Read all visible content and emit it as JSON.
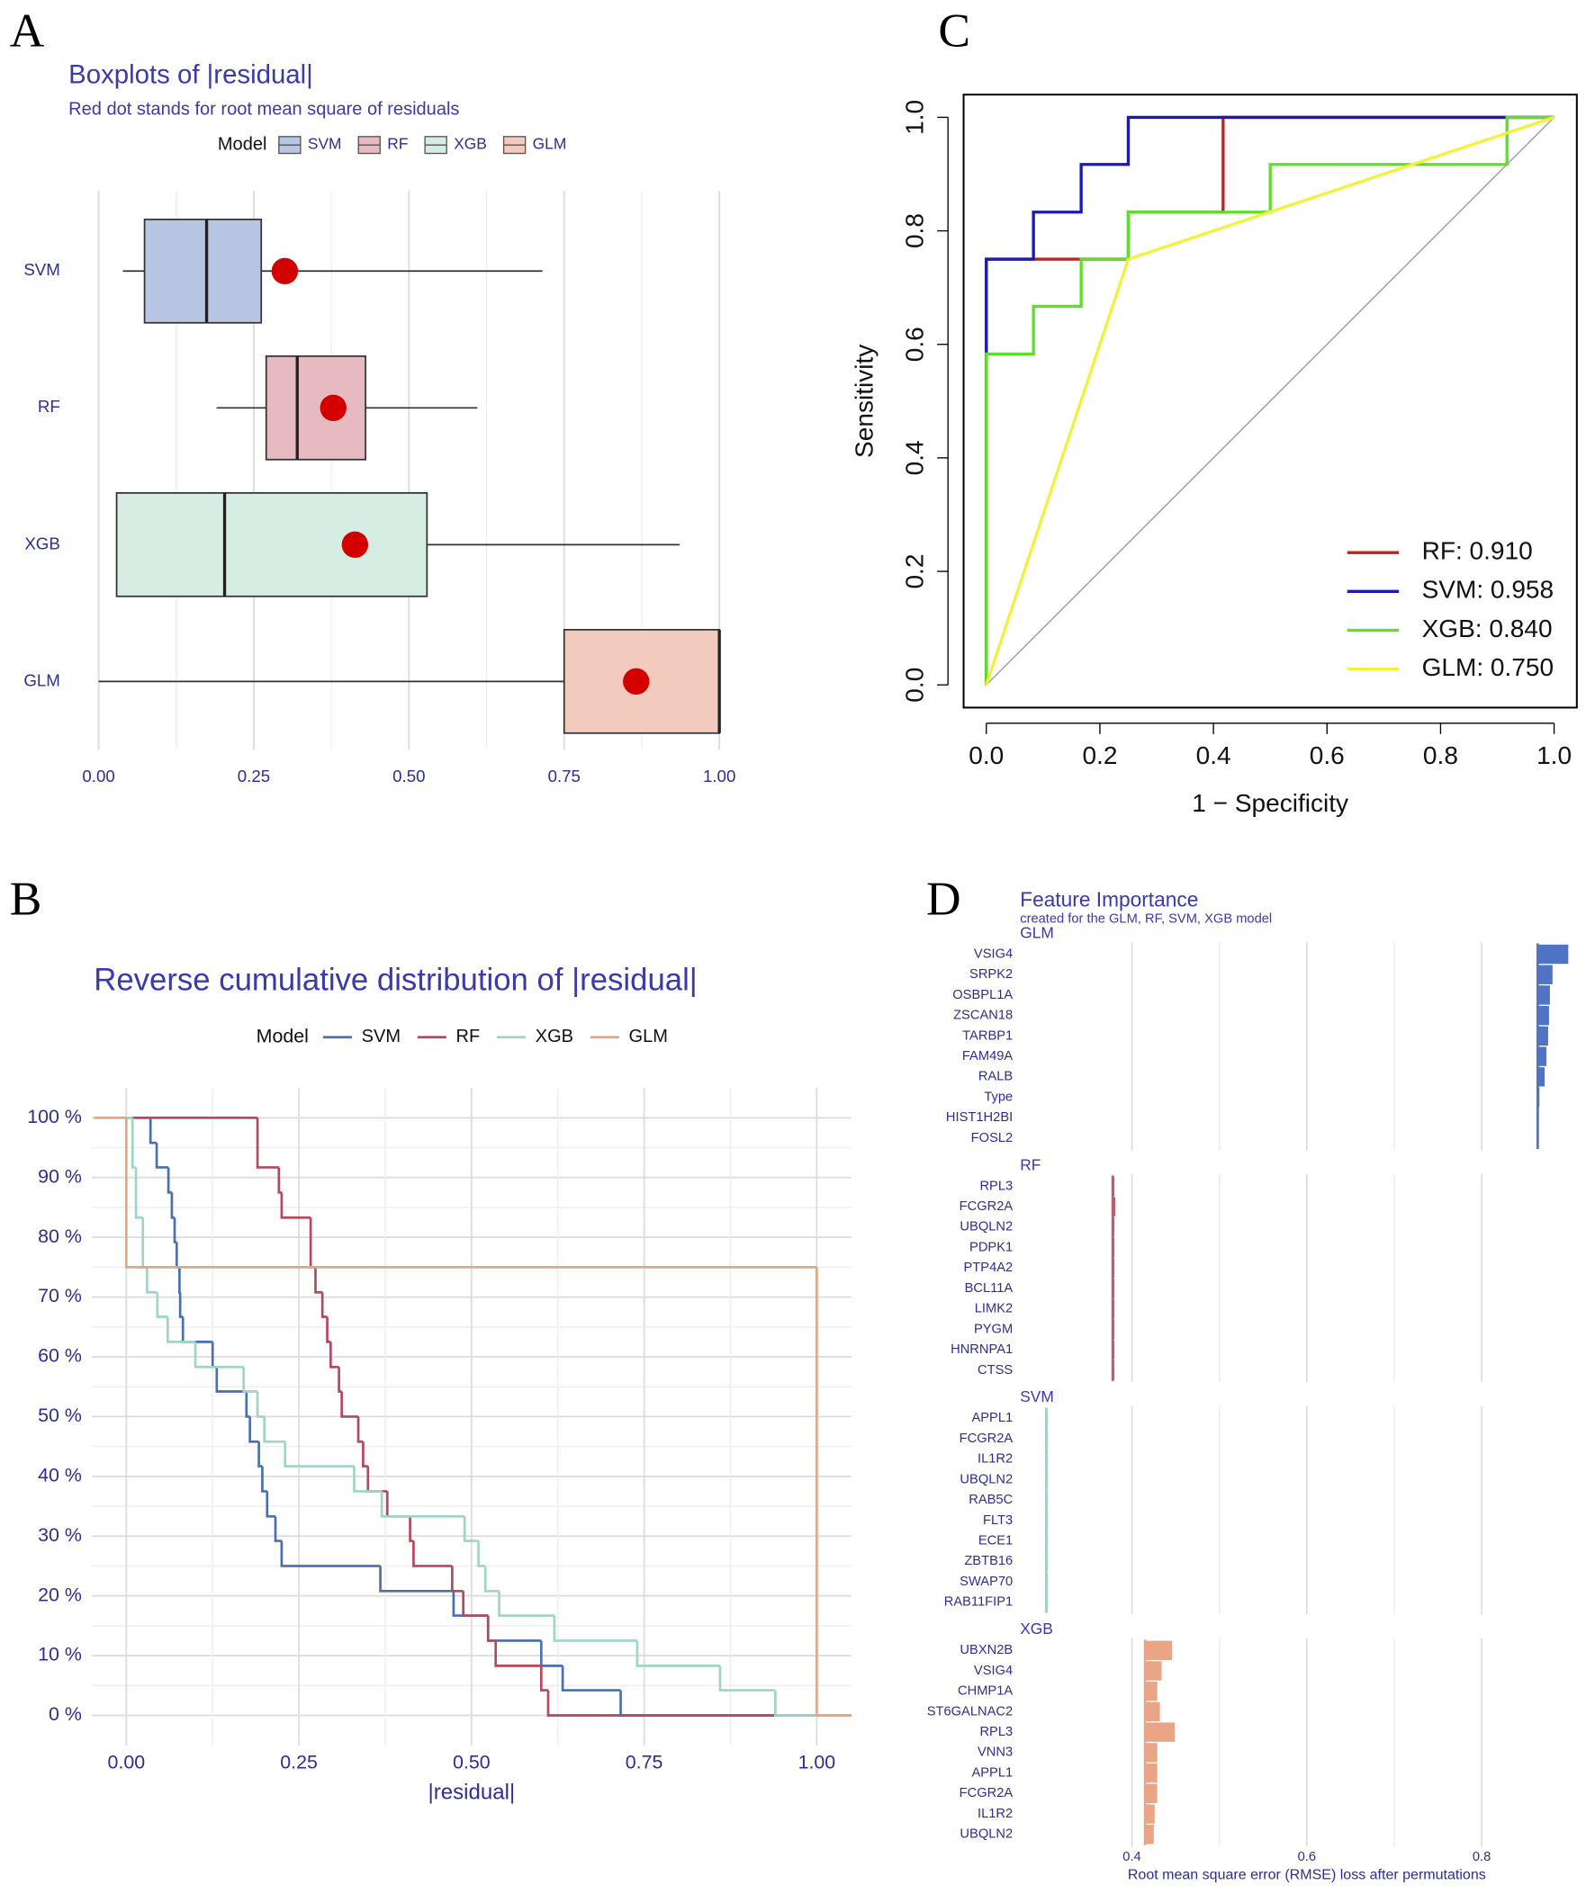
{
  "chart_data": [
    {
      "panel_label": "A",
      "type": "boxplot",
      "title": "Boxplots of |residual|",
      "subtitle": "Red dot stands for root mean square of residuals",
      "legend_title": "Model",
      "dot_color": "#d40000",
      "boxes": [
        {
          "name": "SVM",
          "color": "#b7c5e3",
          "min": 0.039,
          "q1": 0.074,
          "median": 0.174,
          "q3": 0.262,
          "max": 0.715,
          "rmse": 0.3
        },
        {
          "name": "RF",
          "color": "#e7b9c1",
          "min": 0.19,
          "q1": 0.27,
          "median": 0.32,
          "q3": 0.43,
          "max": 0.61,
          "rmse": 0.378
        },
        {
          "name": "XGB",
          "color": "#d6ede3",
          "min": 0.029,
          "q1": 0.029,
          "median": 0.203,
          "q3": 0.529,
          "max": 0.936,
          "rmse": 0.413
        },
        {
          "name": "GLM",
          "color": "#f2cbbe",
          "min": 0,
          "q1": 0.75,
          "median": 1,
          "q3": 1,
          "max": 1,
          "rmse": 0.866
        }
      ],
      "xlim": [
        -0.03,
        1.03
      ],
      "xticks": [
        {
          "value": 0,
          "label": "0.00"
        },
        {
          "value": 0.25,
          "label": "0.25"
        },
        {
          "value": 0.5,
          "label": "0.50"
        },
        {
          "value": 0.75,
          "label": "0.75"
        },
        {
          "value": 1,
          "label": "1.00"
        }
      ],
      "grid": true
    },
    {
      "panel_label": "B",
      "type": "step",
      "title": "Reverse cumulative distribution of |residual|",
      "legend_title": "Model",
      "x_label": "|residual|",
      "series": [
        {
          "name": "SVM",
          "color": "#4a6fb0",
          "x": [
            0,
            0.035,
            0.044,
            0.061,
            0.066,
            0.07,
            0.073,
            0.077,
            0.078,
            0.082,
            0.125,
            0.131,
            0.174,
            0.179,
            0.192,
            0.197,
            0.204,
            0.216,
            0.225,
            0.368,
            0.474,
            0.524,
            0.601,
            0.632,
            0.716
          ],
          "values": [
            100,
            95.8,
            91.7,
            87.5,
            83.3,
            79.2,
            75,
            70.8,
            66.7,
            62.5,
            58.3,
            54.2,
            50,
            45.8,
            41.7,
            37.5,
            33.3,
            29.2,
            25,
            20.8,
            16.7,
            12.5,
            8.3,
            4.2,
            0
          ]
        },
        {
          "name": "RF",
          "color": "#b5485d",
          "x": [
            0,
            0.19,
            0.221,
            0.225,
            0.267,
            0.274,
            0.284,
            0.291,
            0.296,
            0.308,
            0.312,
            0.336,
            0.343,
            0.35,
            0.378,
            0.411,
            0.416,
            0.472,
            0.488,
            0.524,
            0.535,
            0.601,
            0.611
          ],
          "values": [
            100,
            91.7,
            87.5,
            83.3,
            75,
            70.8,
            66.7,
            62.5,
            58.3,
            54.2,
            50,
            45.8,
            41.7,
            37.5,
            33.3,
            29.2,
            25,
            20.8,
            16.7,
            12.5,
            8.3,
            4.2,
            0
          ]
        },
        {
          "name": "XGB",
          "color": "#9fd5c1",
          "x": [
            0,
            0.009,
            0.014,
            0.024,
            0.03,
            0.045,
            0.06,
            0.1,
            0.17,
            0.19,
            0.2,
            0.23,
            0.33,
            0.37,
            0.49,
            0.51,
            0.52,
            0.54,
            0.62,
            0.74,
            0.86,
            0.94
          ],
          "values": [
            100,
            91.7,
            83.3,
            75,
            70.8,
            66.7,
            62.5,
            58.3,
            54.2,
            50,
            45.8,
            41.7,
            37.5,
            33.3,
            29.2,
            25,
            20.8,
            16.7,
            12.5,
            8.3,
            4.2,
            0
          ]
        },
        {
          "name": "GLM",
          "color": "#e2a77f",
          "x": [
            -0.047,
            0,
            1
          ],
          "values": [
            100,
            75,
            0
          ]
        }
      ],
      "xlim": [
        -0.05,
        1.05
      ],
      "xticks": [
        {
          "value": 0,
          "label": "0.00"
        },
        {
          "value": 0.25,
          "label": "0.25"
        },
        {
          "value": 0.5,
          "label": "0.50"
        },
        {
          "value": 0.75,
          "label": "0.75"
        },
        {
          "value": 1,
          "label": "1.00"
        }
      ],
      "ylim": [
        -5,
        105
      ],
      "yticks": [
        {
          "value": 0,
          "label": "0 %"
        },
        {
          "value": 10,
          "label": "10 %"
        },
        {
          "value": 20,
          "label": "20 %"
        },
        {
          "value": 30,
          "label": "30 %"
        },
        {
          "value": 40,
          "label": "40 %"
        },
        {
          "value": 50,
          "label": "50 %"
        },
        {
          "value": 60,
          "label": "60 %"
        },
        {
          "value": 70,
          "label": "70 %"
        },
        {
          "value": 80,
          "label": "80 %"
        },
        {
          "value": 90,
          "label": "90 %"
        },
        {
          "value": 100,
          "label": "100 %"
        }
      ],
      "grid": true
    },
    {
      "panel_label": "C",
      "type": "line",
      "x_label": "1 − Specificity",
      "y_label": "Sensitivity",
      "series": [
        {
          "name": "RF: 0.910",
          "color": "#c81e1e",
          "x": [
            0,
            0,
            0.167,
            0.25,
            0.25,
            0.417,
            0.417,
            1
          ],
          "values": [
            0,
            0.75,
            0.75,
            0.75,
            0.833,
            0.833,
            1,
            1
          ]
        },
        {
          "name": "SVM: 0.958",
          "color": "#1a1ab4",
          "x": [
            0,
            0,
            0.083,
            0.083,
            0.167,
            0.167,
            0.25,
            0.25,
            1
          ],
          "values": [
            0,
            0.75,
            0.75,
            0.833,
            0.833,
            0.917,
            0.917,
            1,
            1
          ]
        },
        {
          "name": "XGB: 0.840",
          "color": "#5ee02a",
          "x": [
            0,
            0,
            0.083,
            0.083,
            0.167,
            0.167,
            0.25,
            0.25,
            0.5,
            0.5,
            0.917,
            0.917,
            1
          ],
          "values": [
            0,
            0.583,
            0.583,
            0.667,
            0.667,
            0.75,
            0.75,
            0.833,
            0.833,
            0.917,
            0.917,
            1,
            1
          ]
        },
        {
          "name": "GLM: 0.750",
          "color": "#f2f23c",
          "x": [
            0,
            0.25,
            1
          ],
          "values": [
            0,
            0.75,
            1
          ]
        }
      ],
      "xlim": [
        -0.04,
        1.04
      ],
      "xticks": [
        {
          "value": 0,
          "label": "0.0"
        },
        0.2,
        0.4,
        0.6,
        0.8,
        {
          "value": 1,
          "label": "1.0"
        }
      ],
      "ylim": [
        -0.04,
        1.04
      ],
      "yticks": [
        {
          "value": 0,
          "label": "0.0"
        },
        0.2,
        0.4,
        0.6,
        0.8,
        {
          "value": 1,
          "label": "1.0"
        }
      ]
    },
    {
      "panel_label": "D",
      "type": "importance",
      "title": "Feature Importance",
      "subtitle": "created for the GLM, RF, SVM, XGB model",
      "x_label": "Root mean square error (RMSE) loss after permutations",
      "facets": [
        {
          "name": "GLM",
          "color": "#4f74c4",
          "baseline": 0.864,
          "categories": [
            "VSIG4",
            "SRPK2",
            "OSBPL1A",
            "ZSCAN18",
            "TARBP1",
            "FAM49A",
            "RALB",
            "Type",
            "HIST1H2BI",
            "FOSL2"
          ],
          "values": [
            0.899,
            0.881,
            0.878,
            0.877,
            0.876,
            0.874,
            0.872,
            0.866,
            0.865,
            0.865
          ]
        },
        {
          "name": "RF",
          "color": "#c45a6e",
          "baseline": 0.378,
          "categories": [
            "RPL3",
            "FCGR2A",
            "UBQLN2",
            "PDPK1",
            "PTP4A2",
            "BCL11A",
            "LIMK2",
            "PYGM",
            "HNRNPA1",
            "CTSS"
          ],
          "values": [
            0.38,
            0.381,
            0.38,
            0.38,
            0.38,
            0.38,
            0.38,
            0.38,
            0.38,
            0.38
          ]
        },
        {
          "name": "SVM",
          "color": "#9fd5c1",
          "baseline": 0.302,
          "categories": [
            "APPL1",
            "FCGR2A",
            "IL1R2",
            "UBQLN2",
            "RAB5C",
            "FLT3",
            "ECE1",
            "ZBTB16",
            "SWAP70",
            "RAB11FIP1"
          ],
          "values": [
            0.304,
            0.304,
            0.304,
            0.304,
            0.304,
            0.304,
            0.304,
            0.304,
            0.304,
            0.304
          ]
        },
        {
          "name": "XGB",
          "color": "#eaa486",
          "baseline": 0.415,
          "categories": [
            "UBXN2B",
            "VSIG4",
            "CHMP1A",
            "ST6GALNAC2",
            "RPL3",
            "VNN3",
            "APPL1",
            "FCGR2A",
            "IL1R2",
            "UBQLN2"
          ],
          "values": [
            0.446,
            0.434,
            0.429,
            0.432,
            0.449,
            0.429,
            0.429,
            0.429,
            0.426,
            0.425
          ]
        }
      ],
      "xlim": [
        0.3,
        0.9
      ],
      "xticks": [
        0.4,
        0.6,
        0.8
      ],
      "grid": true
    }
  ]
}
